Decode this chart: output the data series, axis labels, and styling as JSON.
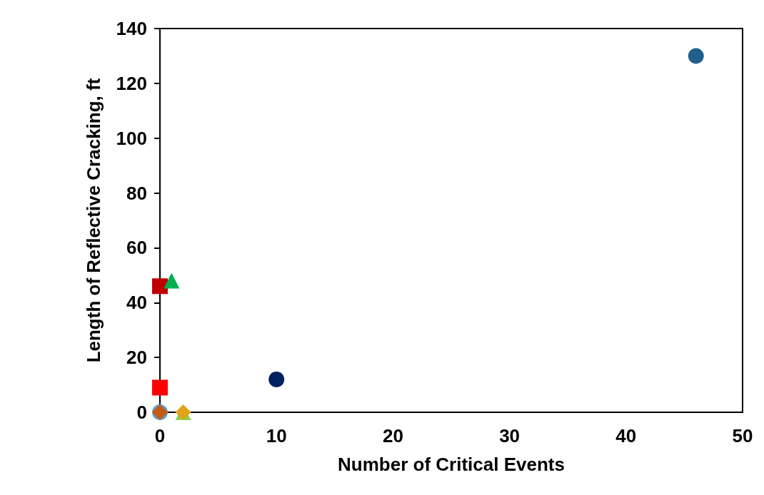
{
  "chart_data": {
    "type": "scatter",
    "xlabel": "Number of Critical Events",
    "ylabel": "Length of Reflective Cracking, ft",
    "xlim": [
      0,
      50
    ],
    "xticks": [
      0,
      10,
      20,
      30,
      40,
      50
    ],
    "ylim": [
      0,
      140
    ],
    "yticks": [
      0,
      20,
      40,
      60,
      80,
      100,
      120,
      140
    ],
    "grid": false,
    "series": [
      {
        "color": "#1f5f8b",
        "marker": "circle",
        "x": [
          46
        ],
        "values": [
          130
        ]
      },
      {
        "color": "#002060",
        "marker": "circle",
        "x": [
          10
        ],
        "values": [
          12
        ]
      },
      {
        "color": "#c00000",
        "marker": "square",
        "x": [
          0
        ],
        "values": [
          46
        ]
      },
      {
        "color": "#00b050",
        "marker": "triangle",
        "x": [
          1
        ],
        "values": [
          48
        ]
      },
      {
        "color": "#ff0000",
        "marker": "square",
        "x": [
          0
        ],
        "values": [
          9
        ]
      },
      {
        "color": "#5b9bd5",
        "marker": "circle",
        "x": [
          0
        ],
        "values": [
          0
        ]
      },
      {
        "color": "#c55a11",
        "marker": "diamond",
        "x": [
          0
        ],
        "values": [
          0
        ]
      },
      {
        "color": "#92d050",
        "marker": "triangle",
        "x": [
          2
        ],
        "values": [
          0
        ]
      },
      {
        "color": "#e0a31a",
        "marker": "diamond",
        "x": [
          2
        ],
        "values": [
          0
        ]
      }
    ]
  }
}
